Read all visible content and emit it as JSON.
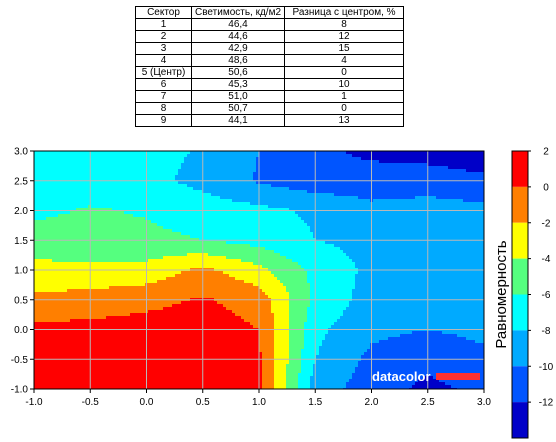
{
  "table": {
    "headers": [
      "Сектор",
      "Светимость, кд/м2",
      "Разница с центром, %"
    ],
    "rows": [
      [
        "1",
        "46,4",
        "8"
      ],
      [
        "2",
        "44,6",
        "12"
      ],
      [
        "3",
        "42,9",
        "15"
      ],
      [
        "4",
        "48,6",
        "4"
      ],
      [
        "5 (Центр)",
        "50,6",
        "0"
      ],
      [
        "6",
        "45,3",
        "10"
      ],
      [
        "7",
        "51,0",
        "1"
      ],
      [
        "8",
        "50,7",
        "0"
      ],
      [
        "9",
        "44,1",
        "13"
      ]
    ]
  },
  "chart_data": {
    "type": "heatmap",
    "title": "",
    "xlabel": "",
    "ylabel": "",
    "xlim": [
      -1.0,
      3.0
    ],
    "ylim": [
      -1.0,
      3.0
    ],
    "x_ticks": [
      "-1.0",
      "-0.5",
      "0.0",
      "0.5",
      "1.0",
      "1.5",
      "2.0",
      "2.5",
      "3.0"
    ],
    "y_ticks": [
      "-1.0",
      "-0.5",
      "0.0",
      "0.5",
      "1.0",
      "1.5",
      "2.0",
      "2.5",
      "3.0"
    ],
    "grid": true,
    "colorbar": {
      "label": "Равномерность",
      "ticks": [
        "2",
        "0",
        "-2",
        "-4",
        "-6",
        "-8",
        "-10",
        "-12"
      ],
      "levels": [
        {
          "from": 0,
          "to": 2,
          "color": "#ff0000"
        },
        {
          "from": -2,
          "to": 0,
          "color": "#ff7f00"
        },
        {
          "from": -4,
          "to": -2,
          "color": "#ffff00"
        },
        {
          "from": -6,
          "to": -4,
          "color": "#55ff7f"
        },
        {
          "from": -8,
          "to": -6,
          "color": "#00ffff"
        },
        {
          "from": -10,
          "to": -8,
          "color": "#00aaff"
        },
        {
          "from": -12,
          "to": -10,
          "color": "#0055ff"
        },
        {
          "from": -14,
          "to": -12,
          "color": "#0000c8"
        }
      ]
    },
    "grid_values": {
      "x": [
        -1.0,
        -0.5,
        0.0,
        0.5,
        1.0,
        1.5,
        2.0,
        2.5,
        3.0
      ],
      "y": [
        -1.0,
        -0.5,
        0.0,
        0.5,
        1.0,
        1.5,
        2.0,
        2.5,
        3.0
      ],
      "z": [
        [
          0.8,
          0.9,
          1.0,
          1.0,
          0.3,
          -9.0,
          -11.0,
          -12.5,
          -11.5
        ],
        [
          0.8,
          0.9,
          1.0,
          1.0,
          0.3,
          -8.0,
          -10.5,
          -11.5,
          -10.5
        ],
        [
          0.5,
          0.6,
          0.9,
          1.0,
          0.0,
          -7.5,
          -9.5,
          -10.0,
          -9.5
        ],
        [
          -1.5,
          -1.2,
          -0.6,
          0.2,
          -0.8,
          -6.5,
          -8.8,
          -9.0,
          -8.8
        ],
        [
          -3.5,
          -3.5,
          -3.3,
          -1.5,
          -3.5,
          -6.5,
          -8.5,
          -8.8,
          -8.7
        ],
        [
          -5.0,
          -5.2,
          -5.5,
          -6.0,
          -6.7,
          -8.0,
          -8.6,
          -8.8,
          -8.9
        ],
        [
          -6.5,
          -5.8,
          -6.2,
          -7.0,
          -7.5,
          -8.3,
          -9.5,
          -9.3,
          -9.4
        ],
        [
          -7.0,
          -7.2,
          -7.4,
          -8.6,
          -10.2,
          -11.2,
          -11.0,
          -10.8,
          -11.5
        ],
        [
          -6.5,
          -7.0,
          -7.3,
          -8.2,
          -10.0,
          -11.5,
          -12.5,
          -13.0,
          -13.5
        ]
      ]
    }
  },
  "logo": {
    "text": "datacolor"
  }
}
